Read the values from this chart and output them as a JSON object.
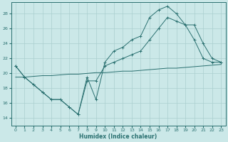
{
  "xlabel": "Humidex (Indice chaleur)",
  "ylabel": "",
  "background_color": "#cbe8e8",
  "grid_color": "#aacfcf",
  "line_color": "#2a7070",
  "xlim": [
    -0.5,
    23.5
  ],
  "ylim": [
    13.0,
    29.5
  ],
  "xticks": [
    0,
    1,
    2,
    3,
    4,
    5,
    6,
    7,
    8,
    9,
    10,
    11,
    12,
    13,
    14,
    15,
    16,
    17,
    18,
    19,
    20,
    21,
    22,
    23
  ],
  "yticks": [
    14,
    16,
    18,
    20,
    22,
    24,
    26,
    28
  ],
  "line1_x": [
    0,
    1,
    2,
    3,
    4,
    5,
    6,
    7,
    8,
    9,
    10,
    11,
    12,
    13,
    14,
    15,
    16,
    17,
    18,
    19,
    20,
    21,
    22,
    23
  ],
  "line1_y": [
    21.0,
    19.5,
    18.5,
    17.5,
    16.5,
    16.5,
    15.5,
    14.5,
    19.5,
    16.5,
    21.5,
    23.0,
    23.5,
    24.5,
    25.0,
    27.5,
    28.5,
    29.0,
    28.0,
    26.5,
    24.5,
    22.0,
    21.5,
    21.5
  ],
  "line2_x": [
    0,
    1,
    2,
    3,
    4,
    5,
    6,
    7,
    8,
    9,
    10,
    11,
    12,
    13,
    14,
    15,
    16,
    17,
    18,
    19,
    20,
    21,
    22,
    23
  ],
  "line2_y": [
    21.0,
    19.5,
    18.5,
    17.5,
    16.5,
    16.5,
    15.5,
    14.5,
    19.0,
    19.0,
    21.0,
    21.5,
    22.0,
    22.5,
    23.0,
    24.5,
    26.0,
    27.5,
    27.0,
    26.5,
    26.5,
    24.0,
    22.0,
    21.5
  ],
  "line3_x": [
    0,
    1,
    2,
    3,
    4,
    5,
    6,
    7,
    8,
    9,
    10,
    11,
    12,
    13,
    14,
    15,
    16,
    17,
    18,
    19,
    20,
    21,
    22,
    23
  ],
  "line3_y": [
    19.5,
    19.5,
    19.6,
    19.7,
    19.7,
    19.8,
    19.9,
    19.9,
    20.0,
    20.1,
    20.1,
    20.2,
    20.3,
    20.3,
    20.4,
    20.5,
    20.6,
    20.7,
    20.7,
    20.8,
    20.9,
    21.0,
    21.1,
    21.2
  ]
}
